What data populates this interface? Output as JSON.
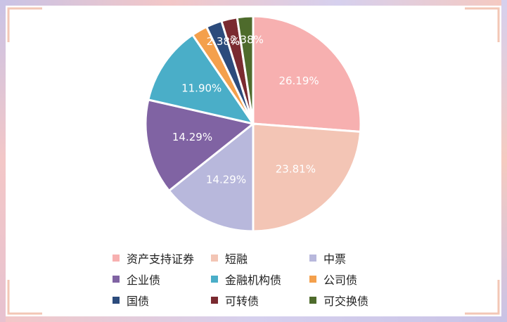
{
  "chart_data": {
    "type": "pie",
    "title": "",
    "categories": [
      "资产支持证券",
      "短融",
      "中票",
      "企业债",
      "金融机构债",
      "公司债",
      "国债",
      "可转债",
      "可交换债"
    ],
    "values": [
      26.19,
      23.81,
      14.29,
      14.29,
      11.9,
      2.38,
      2.38,
      2.38,
      2.38
    ],
    "data_labels": [
      "26.19%",
      "23.81%",
      "14.29%",
      "14.29%",
      "11.90%",
      "",
      "",
      "2.38%",
      "2.38%"
    ],
    "colors": [
      "#f7b0b0",
      "#f3c5b5",
      "#b8b8dc",
      "#8063a3",
      "#4aaec8",
      "#f4a04c",
      "#2c4b7c",
      "#7a2a30",
      "#4e6b2c"
    ],
    "legend_position": "bottom",
    "start_angle_deg": 0,
    "direction": "clockwise"
  }
}
